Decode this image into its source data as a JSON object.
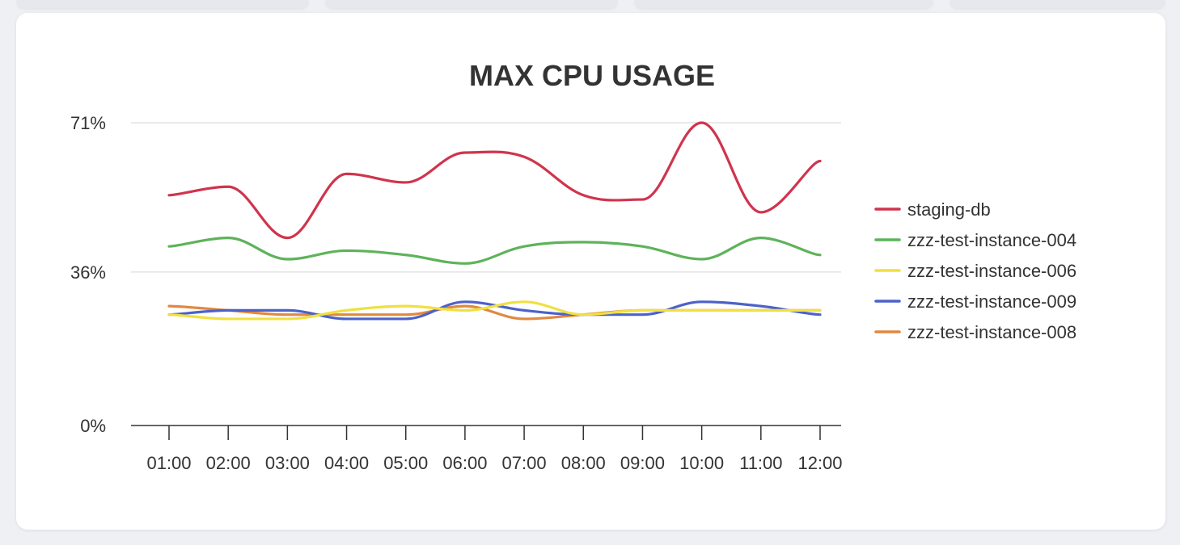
{
  "chart_data": {
    "type": "line",
    "title": "MAX CPU USAGE",
    "xlabel": "",
    "ylabel": "",
    "categories": [
      "01:00",
      "02:00",
      "03:00",
      "04:00",
      "05:00",
      "06:00",
      "07:00",
      "08:00",
      "09:00",
      "10:00",
      "11:00",
      "12:00"
    ],
    "y_ticks": [
      "0%",
      "36%",
      "71%"
    ],
    "ylim": [
      0,
      71
    ],
    "grid": true,
    "legend_position": "right",
    "series": [
      {
        "name": "staging-db",
        "color": "#d0344d",
        "values": [
          54,
          56,
          44,
          59,
          57,
          64,
          63,
          54,
          53,
          71,
          50,
          62
        ]
      },
      {
        "name": "zzz-test-instance-004",
        "color": "#5eb35a",
        "values": [
          42,
          44,
          39,
          41,
          40,
          38,
          42,
          43,
          42,
          39,
          44,
          40
        ]
      },
      {
        "name": "zzz-test-instance-006",
        "color": "#f0e040",
        "values": [
          26,
          25,
          25,
          27,
          28,
          27,
          29,
          26,
          27,
          27,
          27,
          27
        ]
      },
      {
        "name": "zzz-test-instance-009",
        "color": "#4c62c9",
        "values": [
          26,
          27,
          27,
          25,
          25,
          29,
          27,
          26,
          26,
          29,
          28,
          26
        ]
      },
      {
        "name": "zzz-test-instance-008",
        "color": "#e2883f",
        "values": [
          28,
          27,
          26,
          26,
          26,
          28,
          25,
          26,
          27,
          27,
          27,
          27
        ]
      }
    ]
  }
}
